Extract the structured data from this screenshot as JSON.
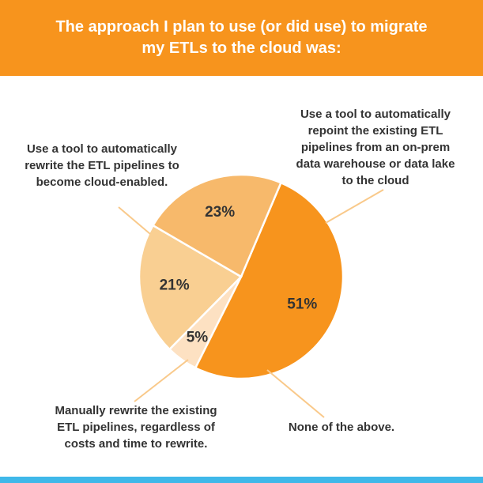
{
  "header": {
    "title": "The approach I plan to use (or did use) to migrate my ETLs to the cloud was:"
  },
  "colors": {
    "header_bg": "#f7941d",
    "footer_bar": "#3fb8e9",
    "slice_repoint": "#f7941d",
    "slice_none": "#fde1c2",
    "slice_manual": "#f9cf92",
    "slice_rewrite_tool": "#f7b96b",
    "leader_line": "#f9c98a"
  },
  "chart_data": {
    "type": "pie",
    "title": "The approach I plan to use (or did use) to migrate my ETLs to the cloud was:",
    "slices": [
      {
        "key": "repoint",
        "label": "Use a tool to automatically repoint the existing ETL pipelines from an on-prem data warehouse or data lake to the cloud",
        "value": 51,
        "display": "51%",
        "color": "#f7941d"
      },
      {
        "key": "none",
        "label": "None of the above.",
        "value": 5,
        "display": "5%",
        "color": "#fde1c2"
      },
      {
        "key": "manual",
        "label": "Manually rewrite the existing ETL pipelines, regardless of costs and time to rewrite.",
        "value": 21,
        "display": "21%",
        "color": "#f9cf92"
      },
      {
        "key": "rewrite_tool",
        "label": "Use a tool to automatically rewrite the ETL pipelines to become cloud-enabled.",
        "value": 23,
        "display": "23%",
        "color": "#f7b96b"
      }
    ]
  }
}
